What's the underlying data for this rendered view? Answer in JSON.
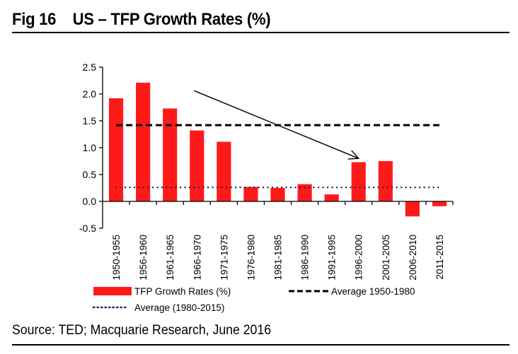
{
  "figure": {
    "title": "Fig 16    US – TFP Growth Rates (%)",
    "source": "Source: TED; Macquarie Research, June 2016"
  },
  "chart_data": {
    "type": "bar",
    "title": "US – TFP Growth Rates (%)",
    "xlabel": "",
    "ylabel": "",
    "ylim": [
      -0.5,
      2.5
    ],
    "yticks": [
      2.5,
      2.0,
      1.5,
      1.0,
      0.5,
      0.0,
      -0.5
    ],
    "ytick_labels": [
      "2.5",
      "2.0",
      "1.5",
      "1.0",
      "0.5",
      "0.0",
      "-0.5"
    ],
    "categories": [
      "1950-1955",
      "1956-1960",
      "1961-1965",
      "1966-1970",
      "1971-1975",
      "1976-1980",
      "1981-1985",
      "1986-1990",
      "1991-1995",
      "1996-2000",
      "2001-2005",
      "2006-2010",
      "2011-2015"
    ],
    "series": [
      {
        "name": "TFP Growth Rates (%)",
        "kind": "bar",
        "color": "#ff1a1a",
        "values": [
          1.92,
          2.21,
          1.73,
          1.32,
          1.11,
          0.27,
          0.25,
          0.32,
          0.13,
          0.73,
          0.75,
          -0.28,
          -0.09
        ]
      },
      {
        "name": "Average 1950-1980",
        "kind": "hline-dashed",
        "color": "#000000",
        "value": 1.42
      },
      {
        "name": "Average (1980-2015)",
        "kind": "hline-dotted",
        "color": "#1f2a5a",
        "value": 0.26
      }
    ],
    "annotations": [
      {
        "type": "arrow",
        "from": {
          "category": "1961-1965",
          "to_next": 0.9,
          "y": 2.06
        },
        "to": {
          "category": "1996-2000",
          "y": 0.8
        },
        "description": "downward trend arrow"
      }
    ],
    "grid": false,
    "legend": "bottom",
    "legend_entries": [
      "TFP Growth Rates (%)",
      "Average 1950-1980",
      "Average (1980-2015)"
    ]
  }
}
